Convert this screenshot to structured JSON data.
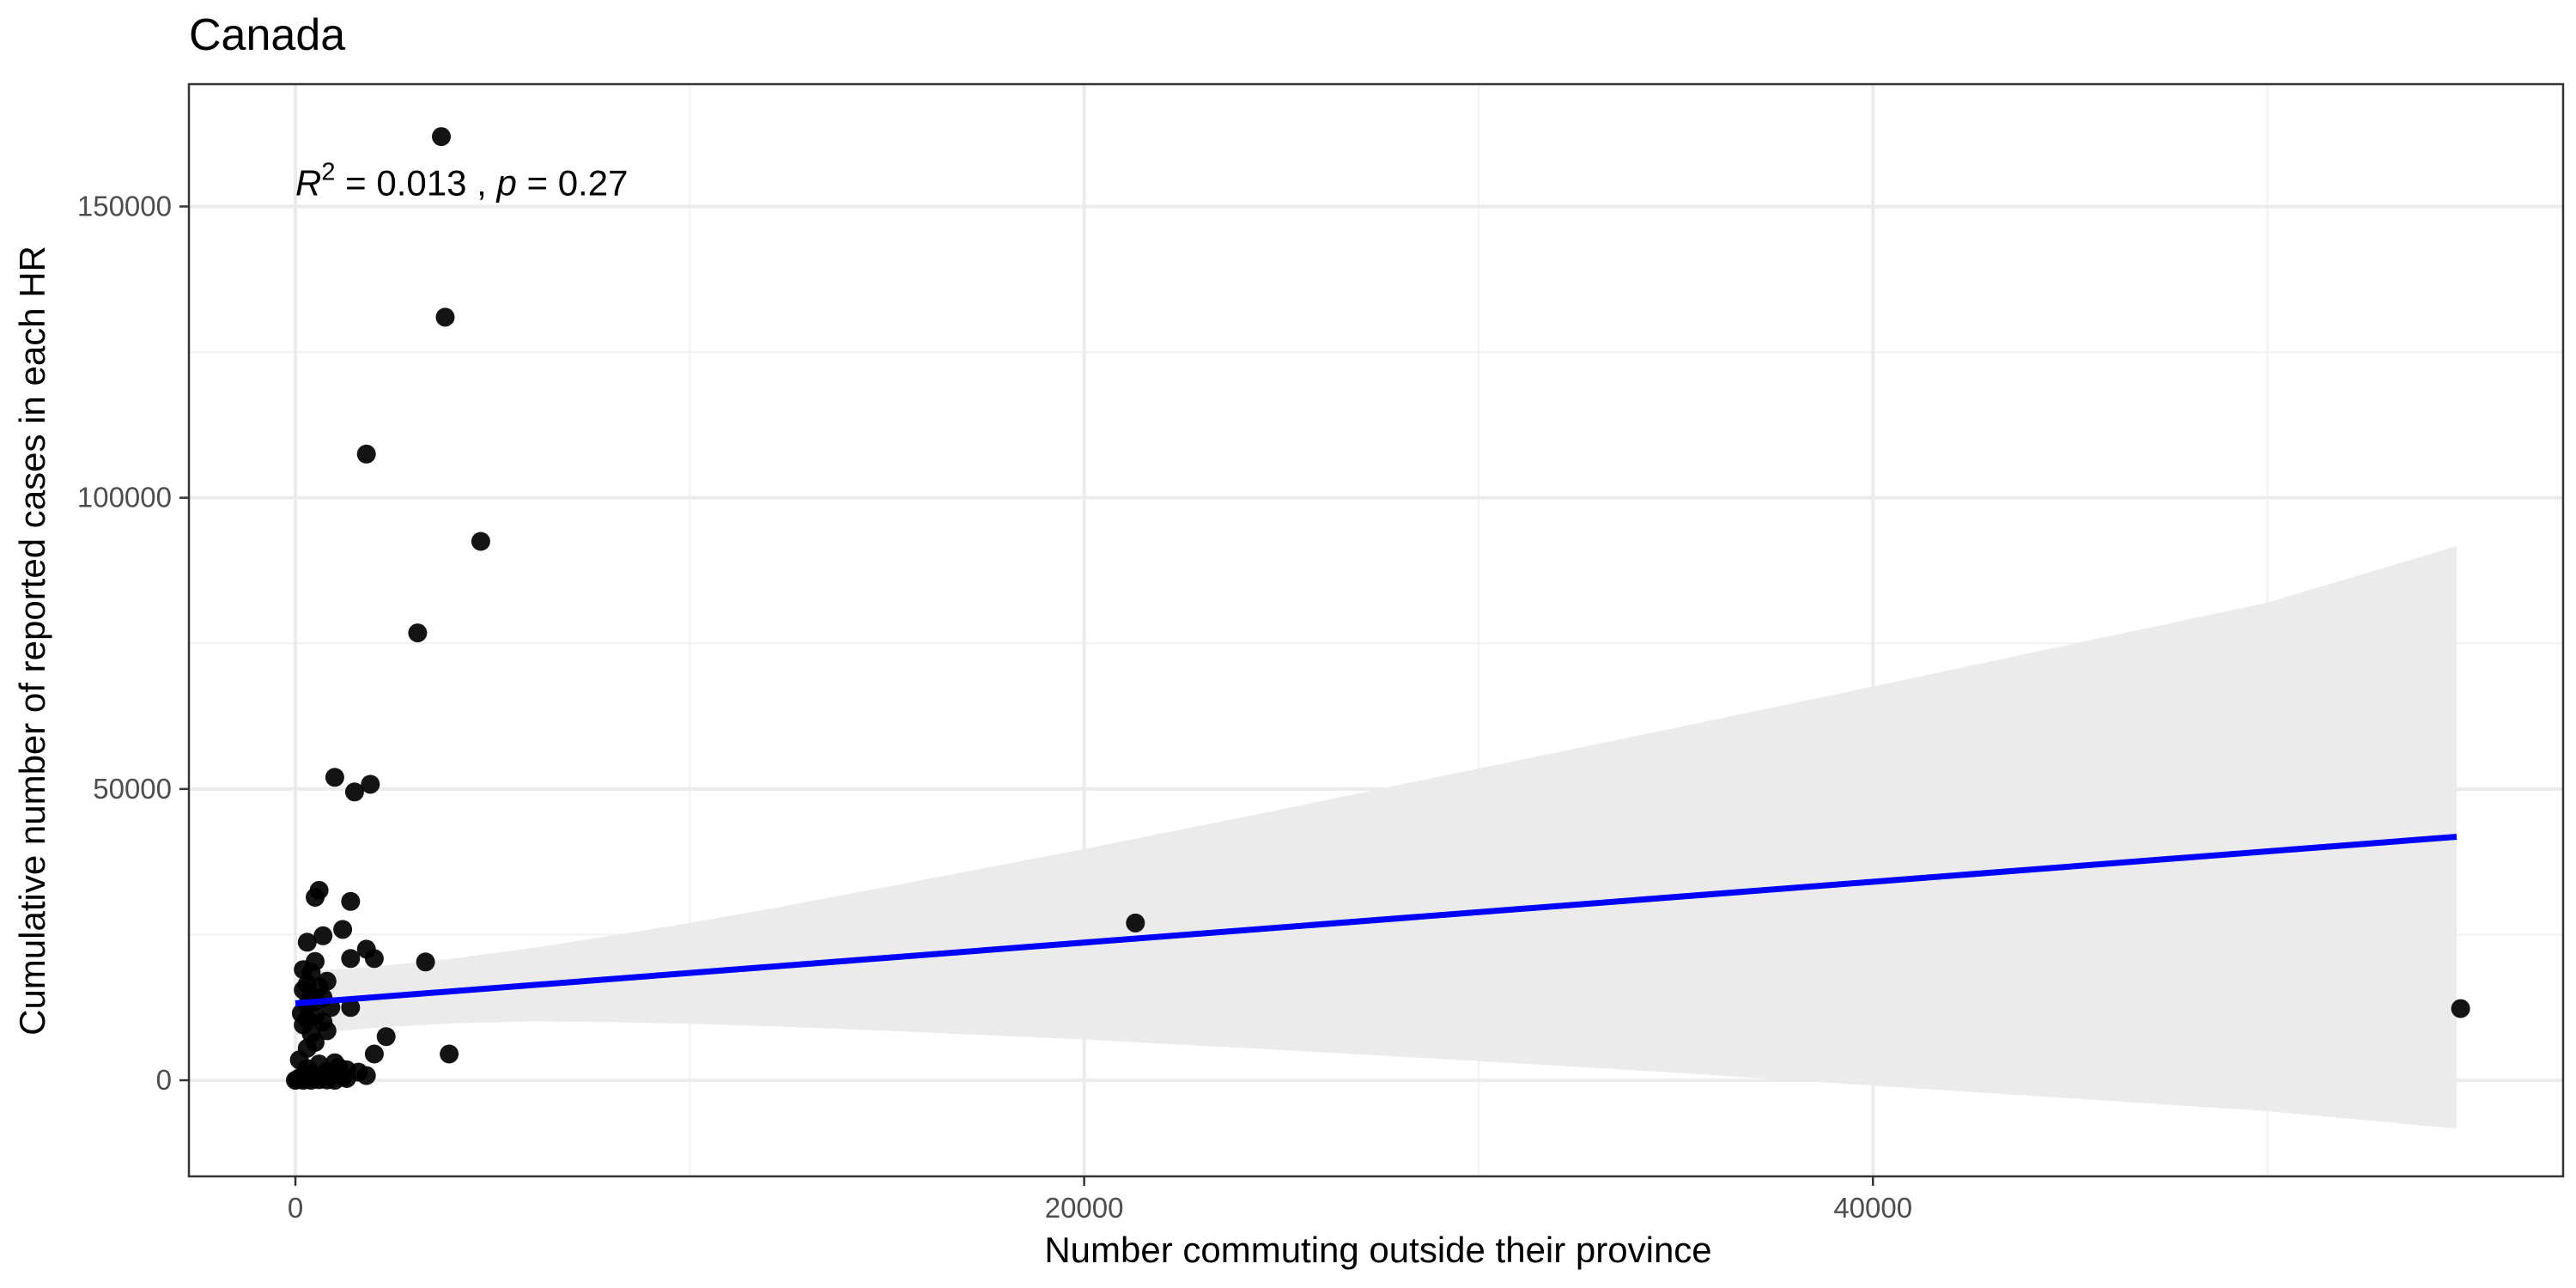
{
  "chart_data": {
    "type": "scatter",
    "title": "Canada",
    "xlabel": "Number commuting outside their province",
    "ylabel": "Cumulative number of reported cases in each HR",
    "xlim": [
      -2700,
      57500
    ],
    "ylim": [
      -16500,
      171000
    ],
    "x_ticks": [
      0,
      20000,
      40000
    ],
    "x_tick_labels": [
      "0",
      "20000",
      "40000"
    ],
    "y_ticks": [
      0,
      50000,
      100000,
      150000
    ],
    "y_tick_labels": [
      "0",
      "50000",
      "100000",
      "150000"
    ],
    "x_minor_ticks": [
      10000,
      30000,
      50000
    ],
    "y_minor_ticks": [
      25000,
      75000,
      125000
    ],
    "grid": true,
    "annotation": {
      "r_symbol": "R",
      "r_exp": "2",
      "r_value": " = 0.013 , ",
      "p_symbol": "p",
      "p_value": " = 0.27",
      "x": 0,
      "y": 154000
    },
    "fit_line": {
      "color": "#0000ff",
      "x": [
        0,
        54800
      ],
      "y": [
        13200,
        41800
      ]
    },
    "confidence_band": {
      "color": "#ebebeb",
      "x": [
        0,
        2000,
        4000,
        6000,
        8000,
        10000,
        12000,
        15000,
        20000,
        25000,
        30000,
        35000,
        40000,
        45000,
        50000,
        54800
      ],
      "upper": [
        18600,
        19500,
        20900,
        22700,
        24800,
        27000,
        29400,
        33200,
        39700,
        46500,
        53500,
        60500,
        67600,
        74800,
        82000,
        91700
      ],
      "lower": [
        7800,
        9000,
        9800,
        10100,
        10000,
        9700,
        9300,
        8500,
        7000,
        5200,
        3300,
        1300,
        -900,
        -3100,
        -5300,
        -8300
      ]
    },
    "points_color": "#000000",
    "points": [
      [
        3700,
        162000
      ],
      [
        3800,
        131000
      ],
      [
        1800,
        107500
      ],
      [
        4700,
        92500
      ],
      [
        3100,
        76800
      ],
      [
        1000,
        52000
      ],
      [
        1900,
        50800
      ],
      [
        1500,
        49500
      ],
      [
        600,
        32600
      ],
      [
        500,
        31400
      ],
      [
        1400,
        30700
      ],
      [
        1200,
        25900
      ],
      [
        700,
        24800
      ],
      [
        300,
        23700
      ],
      [
        1800,
        22500
      ],
      [
        21300,
        27000
      ],
      [
        3300,
        20300
      ],
      [
        1400,
        20900
      ],
      [
        2000,
        20900
      ],
      [
        500,
        20400
      ],
      [
        200,
        19000
      ],
      [
        400,
        18500
      ],
      [
        800,
        17000
      ],
      [
        300,
        16500
      ],
      [
        600,
        16000
      ],
      [
        200,
        15500
      ],
      [
        400,
        14500
      ],
      [
        700,
        14200
      ],
      [
        500,
        13500
      ],
      [
        300,
        13000
      ],
      [
        900,
        12500
      ],
      [
        1400,
        12500
      ],
      [
        54900,
        12300
      ],
      [
        150,
        11500
      ],
      [
        500,
        11000
      ],
      [
        300,
        10500
      ],
      [
        700,
        10000
      ],
      [
        200,
        9500
      ],
      [
        800,
        8500
      ],
      [
        400,
        8000
      ],
      [
        2300,
        7500
      ],
      [
        500,
        6500
      ],
      [
        300,
        5500
      ],
      [
        2000,
        4500
      ],
      [
        3900,
        4500
      ],
      [
        100,
        3500
      ],
      [
        1000,
        3000
      ],
      [
        600,
        2800
      ],
      [
        1100,
        2200
      ],
      [
        300,
        2000
      ],
      [
        1300,
        1800
      ],
      [
        800,
        1500
      ],
      [
        1600,
        1400
      ],
      [
        400,
        1200
      ],
      [
        1800,
        800
      ],
      [
        200,
        800
      ],
      [
        900,
        700
      ],
      [
        1200,
        600
      ],
      [
        700,
        500
      ],
      [
        100,
        400
      ],
      [
        500,
        300
      ],
      [
        1300,
        300
      ],
      [
        300,
        200
      ],
      [
        50,
        100
      ],
      [
        600,
        100
      ],
      [
        800,
        50
      ],
      [
        200,
        0
      ],
      [
        400,
        0
      ],
      [
        1000,
        0
      ],
      [
        0,
        0
      ]
    ]
  }
}
